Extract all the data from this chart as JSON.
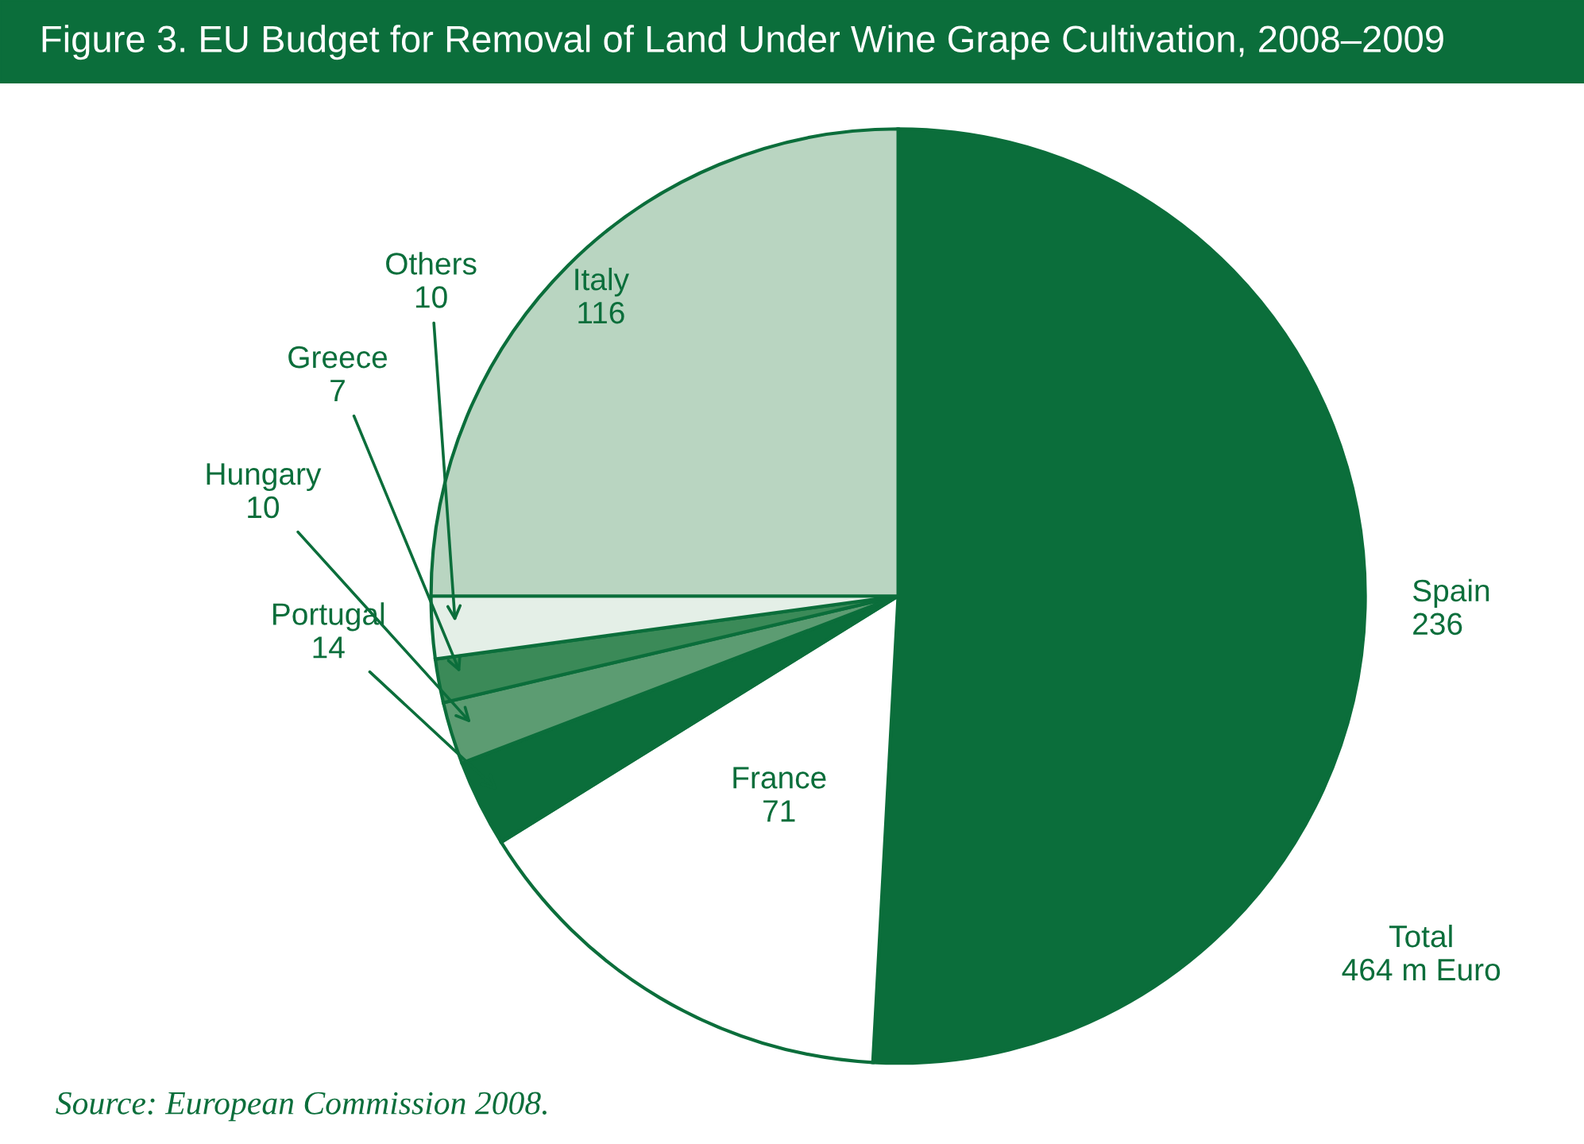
{
  "chart_data": {
    "type": "pie",
    "title": "Figure 3. EU Budget for Removal of Land Under Wine Grape Cultivation, 2008–2009",
    "categories": [
      "Spain",
      "France",
      "Portugal",
      "Hungary",
      "Greece",
      "Others",
      "Italy"
    ],
    "values": [
      236,
      71,
      14,
      10,
      7,
      10,
      116
    ],
    "colors": [
      "#0b6e3b",
      "#ffffff",
      "#0b6e3b",
      "#5c9c72",
      "#3b8a58",
      "#e4efe7",
      "#b9d5c1"
    ],
    "data_labels": true,
    "annotations": [
      "Total\n464 m Euro",
      "Source: European Commission 2008."
    ]
  }
}
